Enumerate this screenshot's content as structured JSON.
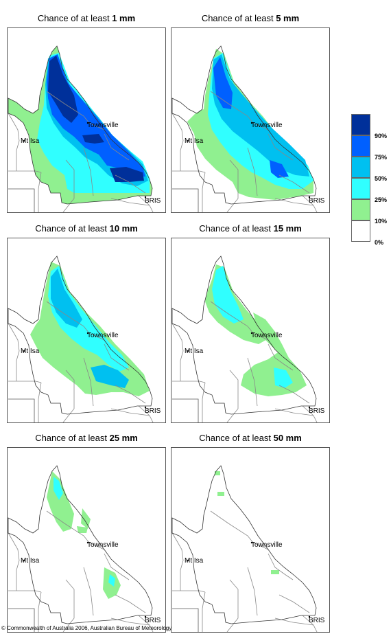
{
  "panels": [
    {
      "title_prefix": "Chance of at least ",
      "amount": "1 mm",
      "level": 5
    },
    {
      "title_prefix": "Chance of at least ",
      "amount": "5 mm",
      "level": 4
    },
    {
      "title_prefix": "Chance of at least ",
      "amount": "10 mm",
      "level": 3
    },
    {
      "title_prefix": "Chance of at least ",
      "amount": "15 mm",
      "level": 2
    },
    {
      "title_prefix": "Chance of at least ",
      "amount": "25 mm",
      "level": 1
    },
    {
      "title_prefix": "Chance of at least ",
      "amount": "50 mm",
      "level": 0
    }
  ],
  "places": {
    "townsville": "Townsville",
    "mt_isa": "Mt Isa",
    "brisbane": "BRIS"
  },
  "legend": {
    "labels": [
      "90%",
      "75%",
      "50%",
      "25%",
      "10%",
      "0%"
    ],
    "colors": [
      "#00309a",
      "#0060ff",
      "#00c0f0",
      "#30ffff",
      "#90f090",
      "#ffffff"
    ]
  },
  "footer": "© Commonwealth of Australia 2006, Australian Bureau of Meteorology"
}
